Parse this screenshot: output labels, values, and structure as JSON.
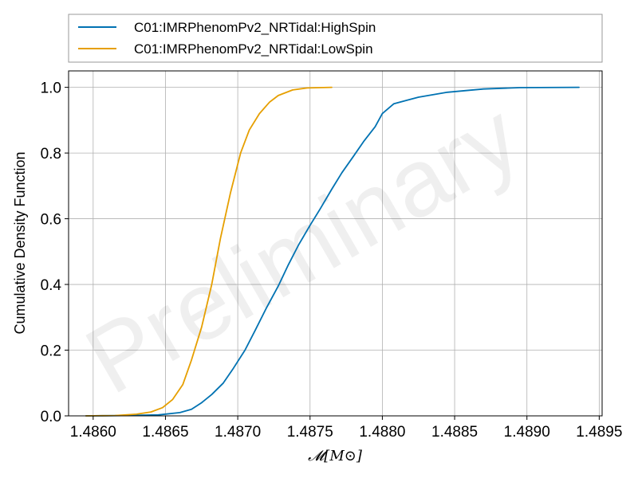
{
  "chart_data": {
    "type": "line",
    "xlabel": "𝓜[M⊙]",
    "ylabel": "Cumulative Density Function",
    "xlim": [
      1.48583,
      1.48952
    ],
    "ylim": [
      0,
      1.05
    ],
    "xticks": [
      1.486,
      1.4865,
      1.487,
      1.4875,
      1.488,
      1.4885,
      1.489,
      1.4895
    ],
    "xtick_labels": [
      "1.4860",
      "1.4865",
      "1.4870",
      "1.4875",
      "1.4880",
      "1.4885",
      "1.4890",
      "1.4895"
    ],
    "yticks": [
      0.0,
      0.2,
      0.4,
      0.6,
      0.8,
      1.0
    ],
    "ytick_labels": [
      "0.0",
      "0.2",
      "0.4",
      "0.6",
      "0.8",
      "1.0"
    ],
    "grid": true,
    "legend_position": "top (above plot)",
    "watermark": "Preliminary",
    "series": [
      {
        "name": "C01:IMRPhenomPv2_NRTidal:HighSpin",
        "color": "#0072b2",
        "x": [
          1.48595,
          1.4862,
          1.48645,
          1.4866,
          1.48668,
          1.48675,
          1.48682,
          1.4869,
          1.48697,
          1.48705,
          1.48712,
          1.4872,
          1.48728,
          1.48735,
          1.48742,
          1.4875,
          1.48757,
          1.48765,
          1.48772,
          1.4878,
          1.48787,
          1.48795,
          1.488,
          1.48808,
          1.48825,
          1.48845,
          1.4887,
          1.48895,
          1.48936
        ],
        "y": [
          0.0,
          0.001,
          0.003,
          0.01,
          0.02,
          0.04,
          0.065,
          0.1,
          0.145,
          0.2,
          0.26,
          0.33,
          0.395,
          0.46,
          0.52,
          0.58,
          0.63,
          0.69,
          0.74,
          0.79,
          0.835,
          0.88,
          0.92,
          0.95,
          0.97,
          0.985,
          0.995,
          0.999,
          1.0
        ]
      },
      {
        "name": "C01:IMRPhenomPv2_NRTidal:LowSpin",
        "color": "#e69f00",
        "x": [
          1.48595,
          1.48615,
          1.4863,
          1.4864,
          1.48648,
          1.48655,
          1.48662,
          1.48668,
          1.48675,
          1.48682,
          1.48688,
          1.48695,
          1.48702,
          1.48708,
          1.48715,
          1.48722,
          1.48728,
          1.48738,
          1.48748,
          1.48765
        ],
        "y": [
          0.0,
          0.001,
          0.005,
          0.012,
          0.025,
          0.05,
          0.095,
          0.17,
          0.27,
          0.4,
          0.54,
          0.68,
          0.8,
          0.87,
          0.92,
          0.955,
          0.975,
          0.992,
          0.998,
          1.0
        ]
      }
    ]
  }
}
